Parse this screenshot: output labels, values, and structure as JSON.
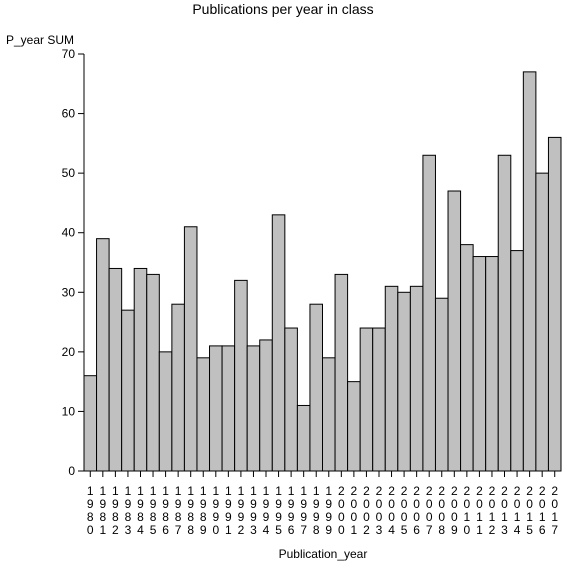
{
  "colors": {
    "bar_fill": "#c0c0c0",
    "bar_stroke": "#000000",
    "axis": "#000000",
    "background": "#ffffff"
  },
  "chart_data": {
    "type": "bar",
    "title": "Publications per year in class",
    "xlabel": "Publication_year",
    "ylabel": "P_year SUM",
    "ylim": [
      0,
      70
    ],
    "yticks": [
      "0",
      "10",
      "20",
      "30",
      "40",
      "50",
      "60",
      "70"
    ],
    "grid": false,
    "legend": "none",
    "categories": [
      "1980",
      "1981",
      "1982",
      "1983",
      "1984",
      "1985",
      "1986",
      "1987",
      "1988",
      "1989",
      "1990",
      "1991",
      "1992",
      "1993",
      "1994",
      "1995",
      "1996",
      "1997",
      "1998",
      "1999",
      "2000",
      "2001",
      "2002",
      "2003",
      "2004",
      "2005",
      "2006",
      "2007",
      "2008",
      "2009",
      "2010",
      "2011",
      "2012",
      "2013",
      "2014",
      "2015",
      "2016",
      "2017"
    ],
    "values": [
      16,
      39,
      34,
      27,
      34,
      33,
      20,
      28,
      41,
      19,
      21,
      21,
      32,
      21,
      22,
      43,
      24,
      11,
      28,
      19,
      33,
      15,
      24,
      24,
      31,
      30,
      31,
      53,
      29,
      47,
      38,
      36,
      36,
      53,
      37,
      67,
      50,
      56
    ]
  }
}
